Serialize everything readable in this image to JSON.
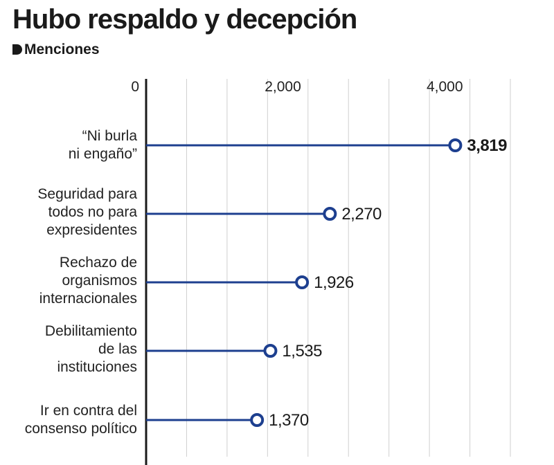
{
  "title": "Hubo respaldo y decepción",
  "subtitle": "Menciones",
  "chart_data": {
    "type": "lollipop",
    "orientation": "horizontal",
    "title": "Hubo respaldo y decepción",
    "subtitle": "Menciones",
    "xlim": [
      0,
      4500
    ],
    "x_ticks": [
      0,
      2000,
      4000
    ],
    "x_tick_labels": [
      "0",
      "2,000",
      "4,000"
    ],
    "grid": true,
    "categories": [
      [
        "“Ni burla",
        "ni engaño”"
      ],
      [
        "Seguridad para",
        "todos no para",
        "expresidentes"
      ],
      [
        "Rechazo de",
        "organismos",
        "internacionales"
      ],
      [
        "Debilitamiento",
        "de las",
        "instituciones"
      ],
      [
        "Ir en contra del",
        "consenso político"
      ]
    ],
    "values": [
      3819,
      2270,
      1926,
      1535,
      1370
    ],
    "value_labels": [
      "3,819",
      "2,270",
      "1,926",
      "1,535",
      "1,370"
    ],
    "highlight_index": 0,
    "colors": {
      "line": "#1d3f8f",
      "grid": "#cfcfcf",
      "axis": "#1a1a1a",
      "text": "#1a1a1a"
    }
  }
}
